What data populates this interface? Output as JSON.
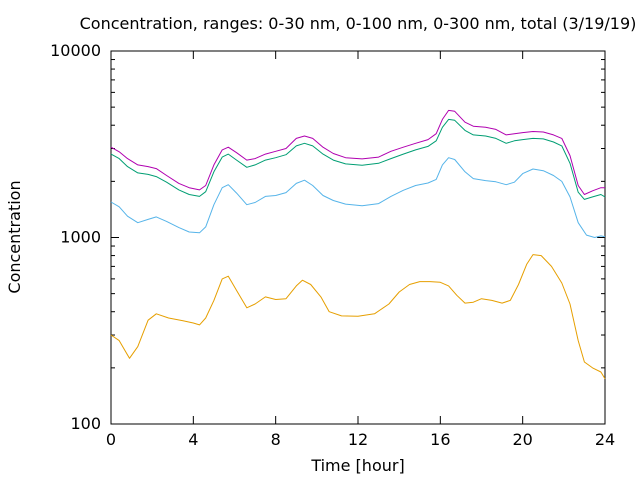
{
  "chart_data": {
    "type": "line",
    "title": "Concentration, ranges: 0-30 nm, 0-100 nm, 0-300 nm, total (3/19/19)",
    "xlabel": "Time [hour]",
    "ylabel": "Concentration",
    "xlim": [
      0,
      24
    ],
    "ylim": [
      100,
      10000
    ],
    "yscale": "log",
    "grid": false,
    "legend": "none",
    "x_ticks": [
      0,
      4,
      8,
      12,
      16,
      20,
      24
    ],
    "x_tick_labels": [
      "0",
      "4",
      "8",
      "12",
      "16",
      "20",
      "24"
    ],
    "y_ticks": [
      100,
      1000,
      10000
    ],
    "y_tick_labels": [
      "100",
      "1000",
      "10000"
    ],
    "series": [
      {
        "color": "#e69f00",
        "points": [
          [
            0,
            300
          ],
          [
            0.4,
            280
          ],
          [
            0.9,
            225
          ],
          [
            1.3,
            260
          ],
          [
            1.8,
            360
          ],
          [
            2.2,
            390
          ],
          [
            2.8,
            370
          ],
          [
            3.5,
            358
          ],
          [
            4.0,
            348
          ],
          [
            4.3,
            340
          ],
          [
            4.6,
            370
          ],
          [
            5.0,
            460
          ],
          [
            5.4,
            600
          ],
          [
            5.7,
            620
          ],
          [
            6.1,
            520
          ],
          [
            6.6,
            420
          ],
          [
            7.0,
            440
          ],
          [
            7.5,
            480
          ],
          [
            8.0,
            465
          ],
          [
            8.5,
            470
          ],
          [
            9.0,
            550
          ],
          [
            9.3,
            590
          ],
          [
            9.7,
            560
          ],
          [
            10.2,
            480
          ],
          [
            10.6,
            400
          ],
          [
            11.2,
            380
          ],
          [
            12.0,
            378
          ],
          [
            12.8,
            390
          ],
          [
            13.5,
            440
          ],
          [
            14.0,
            510
          ],
          [
            14.5,
            560
          ],
          [
            15.0,
            580
          ],
          [
            15.5,
            580
          ],
          [
            16.0,
            575
          ],
          [
            16.4,
            550
          ],
          [
            16.8,
            490
          ],
          [
            17.2,
            445
          ],
          [
            17.6,
            450
          ],
          [
            18.0,
            470
          ],
          [
            18.5,
            460
          ],
          [
            19.0,
            445
          ],
          [
            19.4,
            460
          ],
          [
            19.8,
            560
          ],
          [
            20.2,
            720
          ],
          [
            20.5,
            810
          ],
          [
            20.9,
            800
          ],
          [
            21.4,
            700
          ],
          [
            21.9,
            570
          ],
          [
            22.3,
            440
          ],
          [
            22.7,
            280
          ],
          [
            23.0,
            215
          ],
          [
            23.4,
            200
          ],
          [
            23.8,
            190
          ],
          [
            24.0,
            175
          ]
        ]
      },
      {
        "color": "#56b4e9",
        "points": [
          [
            0,
            1550
          ],
          [
            0.4,
            1460
          ],
          [
            0.8,
            1300
          ],
          [
            1.3,
            1200
          ],
          [
            1.8,
            1250
          ],
          [
            2.2,
            1290
          ],
          [
            2.7,
            1220
          ],
          [
            3.3,
            1130
          ],
          [
            3.8,
            1070
          ],
          [
            4.3,
            1060
          ],
          [
            4.6,
            1140
          ],
          [
            5.0,
            1500
          ],
          [
            5.4,
            1850
          ],
          [
            5.7,
            1920
          ],
          [
            6.1,
            1730
          ],
          [
            6.6,
            1500
          ],
          [
            7.0,
            1540
          ],
          [
            7.5,
            1660
          ],
          [
            8.0,
            1680
          ],
          [
            8.5,
            1740
          ],
          [
            9.0,
            1950
          ],
          [
            9.4,
            2030
          ],
          [
            9.8,
            1900
          ],
          [
            10.3,
            1680
          ],
          [
            10.8,
            1580
          ],
          [
            11.4,
            1510
          ],
          [
            12.2,
            1480
          ],
          [
            13.0,
            1520
          ],
          [
            13.6,
            1660
          ],
          [
            14.2,
            1790
          ],
          [
            14.8,
            1900
          ],
          [
            15.4,
            1960
          ],
          [
            15.8,
            2050
          ],
          [
            16.1,
            2450
          ],
          [
            16.4,
            2680
          ],
          [
            16.7,
            2620
          ],
          [
            17.2,
            2250
          ],
          [
            17.6,
            2070
          ],
          [
            18.2,
            2020
          ],
          [
            18.7,
            1990
          ],
          [
            19.2,
            1920
          ],
          [
            19.6,
            1980
          ],
          [
            20.0,
            2200
          ],
          [
            20.5,
            2330
          ],
          [
            21.0,
            2280
          ],
          [
            21.5,
            2150
          ],
          [
            21.9,
            2000
          ],
          [
            22.3,
            1650
          ],
          [
            22.7,
            1200
          ],
          [
            23.1,
            1030
          ],
          [
            23.5,
            1000
          ],
          [
            23.8,
            1020
          ],
          [
            24.0,
            1010
          ]
        ]
      },
      {
        "color": "#009e73",
        "points": [
          [
            0,
            2800
          ],
          [
            0.4,
            2650
          ],
          [
            0.8,
            2400
          ],
          [
            1.3,
            2220
          ],
          [
            1.8,
            2180
          ],
          [
            2.2,
            2120
          ],
          [
            2.7,
            1980
          ],
          [
            3.3,
            1800
          ],
          [
            3.8,
            1700
          ],
          [
            4.3,
            1660
          ],
          [
            4.6,
            1760
          ],
          [
            5.0,
            2250
          ],
          [
            5.4,
            2700
          ],
          [
            5.7,
            2800
          ],
          [
            6.1,
            2600
          ],
          [
            6.6,
            2380
          ],
          [
            7.0,
            2450
          ],
          [
            7.5,
            2600
          ],
          [
            8.0,
            2680
          ],
          [
            8.5,
            2780
          ],
          [
            9.0,
            3100
          ],
          [
            9.4,
            3200
          ],
          [
            9.8,
            3100
          ],
          [
            10.3,
            2800
          ],
          [
            10.8,
            2600
          ],
          [
            11.4,
            2480
          ],
          [
            12.2,
            2440
          ],
          [
            13.0,
            2500
          ],
          [
            13.6,
            2650
          ],
          [
            14.2,
            2800
          ],
          [
            14.8,
            2950
          ],
          [
            15.4,
            3080
          ],
          [
            15.8,
            3300
          ],
          [
            16.1,
            3900
          ],
          [
            16.4,
            4300
          ],
          [
            16.7,
            4250
          ],
          [
            17.2,
            3750
          ],
          [
            17.6,
            3550
          ],
          [
            18.2,
            3500
          ],
          [
            18.7,
            3400
          ],
          [
            19.2,
            3200
          ],
          [
            19.6,
            3300
          ],
          [
            20.0,
            3350
          ],
          [
            20.5,
            3400
          ],
          [
            21.0,
            3380
          ],
          [
            21.5,
            3250
          ],
          [
            21.9,
            3100
          ],
          [
            22.3,
            2500
          ],
          [
            22.7,
            1750
          ],
          [
            23.0,
            1600
          ],
          [
            23.4,
            1650
          ],
          [
            23.8,
            1700
          ],
          [
            24.0,
            1650
          ]
        ]
      },
      {
        "color": "#b000b0",
        "points": [
          [
            0,
            3050
          ],
          [
            0.4,
            2880
          ],
          [
            0.8,
            2650
          ],
          [
            1.3,
            2450
          ],
          [
            1.8,
            2400
          ],
          [
            2.2,
            2340
          ],
          [
            2.7,
            2150
          ],
          [
            3.3,
            1950
          ],
          [
            3.8,
            1850
          ],
          [
            4.3,
            1800
          ],
          [
            4.6,
            1900
          ],
          [
            5.0,
            2450
          ],
          [
            5.4,
            2950
          ],
          [
            5.7,
            3050
          ],
          [
            6.1,
            2850
          ],
          [
            6.6,
            2600
          ],
          [
            7.0,
            2650
          ],
          [
            7.5,
            2800
          ],
          [
            8.0,
            2900
          ],
          [
            8.5,
            3000
          ],
          [
            9.0,
            3400
          ],
          [
            9.4,
            3500
          ],
          [
            9.8,
            3400
          ],
          [
            10.3,
            3050
          ],
          [
            10.8,
            2820
          ],
          [
            11.4,
            2680
          ],
          [
            12.2,
            2640
          ],
          [
            13.0,
            2700
          ],
          [
            13.6,
            2900
          ],
          [
            14.2,
            3050
          ],
          [
            14.8,
            3200
          ],
          [
            15.4,
            3350
          ],
          [
            15.8,
            3600
          ],
          [
            16.1,
            4300
          ],
          [
            16.4,
            4800
          ],
          [
            16.7,
            4750
          ],
          [
            17.2,
            4150
          ],
          [
            17.6,
            3950
          ],
          [
            18.2,
            3900
          ],
          [
            18.7,
            3800
          ],
          [
            19.2,
            3550
          ],
          [
            19.6,
            3600
          ],
          [
            20.0,
            3650
          ],
          [
            20.5,
            3700
          ],
          [
            21.0,
            3680
          ],
          [
            21.5,
            3550
          ],
          [
            21.9,
            3400
          ],
          [
            22.3,
            2750
          ],
          [
            22.7,
            1900
          ],
          [
            23.0,
            1700
          ],
          [
            23.4,
            1780
          ],
          [
            23.8,
            1850
          ],
          [
            24.0,
            1850
          ]
        ]
      }
    ]
  }
}
